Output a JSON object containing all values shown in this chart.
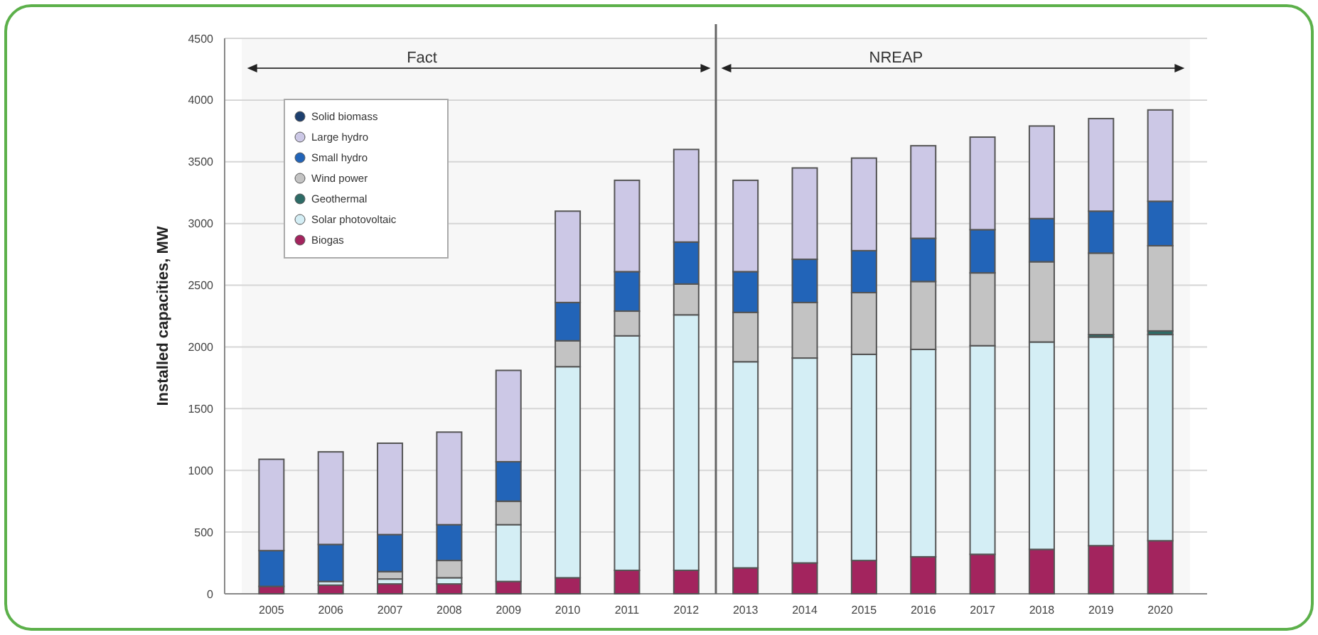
{
  "chart_data": {
    "type": "bar",
    "stacked": true,
    "ylabel": "Installed capacities, MW",
    "categories": [
      "2005",
      "2006",
      "2007",
      "2008",
      "2009",
      "2010",
      "2011",
      "2012",
      "2013",
      "2014",
      "2015",
      "2016",
      "2017",
      "2018",
      "2019",
      "2020"
    ],
    "series": [
      {
        "name": "Biogas",
        "color": "#a3245e",
        "values": [
          60,
          70,
          80,
          80,
          100,
          130,
          190,
          190,
          210,
          250,
          270,
          300,
          320,
          360,
          390,
          430
        ]
      },
      {
        "name": "Solar photovoltaic",
        "color": "#d4eef5",
        "values": [
          0,
          30,
          40,
          50,
          460,
          1710,
          1900,
          2070,
          1670,
          1660,
          1670,
          1680,
          1690,
          1680,
          1690,
          1670
        ]
      },
      {
        "name": "Geothermal",
        "color": "#2e6b66",
        "values": [
          0,
          0,
          0,
          0,
          0,
          0,
          0,
          0,
          0,
          0,
          0,
          0,
          0,
          0,
          20,
          30
        ]
      },
      {
        "name": "Wind power",
        "color": "#c3c3c3",
        "values": [
          0,
          0,
          60,
          140,
          190,
          210,
          200,
          250,
          400,
          450,
          500,
          550,
          590,
          650,
          660,
          690
        ]
      },
      {
        "name": "Small hydro",
        "color": "#2264b8",
        "values": [
          290,
          300,
          300,
          290,
          320,
          310,
          320,
          340,
          330,
          350,
          340,
          350,
          350,
          350,
          340,
          360
        ]
      },
      {
        "name": "Large hydro",
        "color": "#ccc8e6",
        "values": [
          740,
          750,
          740,
          750,
          740,
          740,
          740,
          750,
          740,
          740,
          750,
          750,
          750,
          750,
          750,
          740
        ]
      },
      {
        "name": "Solid biomass",
        "color": "#1d3f6e",
        "values": [
          0,
          0,
          0,
          0,
          0,
          0,
          0,
          0,
          0,
          0,
          0,
          0,
          0,
          0,
          0,
          0
        ]
      }
    ],
    "ylim": [
      0,
      4500
    ],
    "yticks": [
      0,
      500,
      1000,
      1500,
      2000,
      2500,
      3000,
      3500,
      4000,
      4500
    ],
    "grid": "y",
    "legend": "top left",
    "ref_lines": [
      {
        "axis": "x",
        "value": "2013",
        "color": "#666666"
      }
    ],
    "bands": [
      {
        "axis": "x",
        "from": "2005",
        "to": "2012",
        "label": "Fact",
        "color": "#f7f7f7"
      },
      {
        "axis": "x",
        "from": "2013",
        "to": "2020",
        "label": "NREAP",
        "color": "#f7f7f7"
      }
    ]
  }
}
